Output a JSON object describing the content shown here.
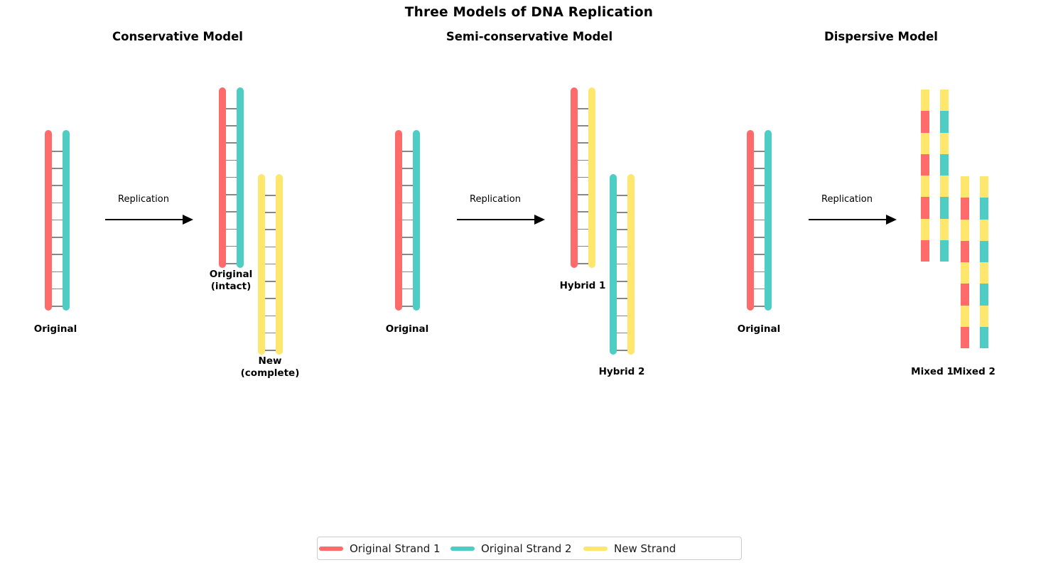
{
  "title": "Three Models of DNA Replication",
  "colors": {
    "original_strand_1": "#FF6B6B",
    "original_strand_2": "#4ECDC4",
    "new_strand": "#FFE66D",
    "rung": "#888888",
    "arrow": "#000000",
    "text": "#000000",
    "legend_border": "#cccccc"
  },
  "panels": [
    {
      "id": "conservative",
      "title": "Conservative Model",
      "arrow_label": "Replication",
      "molecules": [
        {
          "key": "original",
          "label_lines": [
            "Original"
          ],
          "kind": "helix",
          "strand_colors": [
            "original_strand_1",
            "original_strand_2"
          ]
        },
        {
          "key": "original_intact",
          "label_lines": [
            "Original",
            "(intact)"
          ],
          "kind": "helix",
          "strand_colors": [
            "original_strand_1",
            "original_strand_2"
          ]
        },
        {
          "key": "new_complete",
          "label_lines": [
            "New",
            "(complete)"
          ],
          "kind": "helix",
          "strand_colors": [
            "new_strand",
            "new_strand"
          ]
        }
      ]
    },
    {
      "id": "semi_conservative",
      "title": "Semi-conservative Model",
      "arrow_label": "Replication",
      "molecules": [
        {
          "key": "original",
          "label_lines": [
            "Original"
          ],
          "kind": "helix",
          "strand_colors": [
            "original_strand_1",
            "original_strand_2"
          ]
        },
        {
          "key": "hybrid_1",
          "label_lines": [
            "Hybrid 1"
          ],
          "kind": "helix",
          "strand_colors": [
            "original_strand_1",
            "new_strand"
          ]
        },
        {
          "key": "hybrid_2",
          "label_lines": [
            "Hybrid 2"
          ],
          "kind": "helix",
          "strand_colors": [
            "original_strand_2",
            "new_strand"
          ]
        }
      ]
    },
    {
      "id": "dispersive",
      "title": "Dispersive Model",
      "arrow_label": "Replication",
      "molecules": [
        {
          "key": "original",
          "label_lines": [
            "Original"
          ],
          "kind": "helix",
          "strand_colors": [
            "original_strand_1",
            "original_strand_2"
          ]
        },
        {
          "key": "mixed_1",
          "label_lines": [
            "Mixed 1"
          ],
          "kind": "segmented",
          "strand_segments": [
            [
              "new_strand",
              "original_strand_1",
              "new_strand",
              "original_strand_1",
              "new_strand",
              "original_strand_1",
              "new_strand",
              "original_strand_1"
            ],
            [
              "new_strand",
              "original_strand_2",
              "new_strand",
              "original_strand_2",
              "new_strand",
              "original_strand_2",
              "new_strand",
              "original_strand_2"
            ]
          ]
        },
        {
          "key": "mixed_2",
          "label_lines": [
            "Mixed 2"
          ],
          "kind": "segmented",
          "strand_segments": [
            [
              "new_strand",
              "original_strand_1",
              "new_strand",
              "original_strand_1",
              "new_strand",
              "original_strand_1",
              "new_strand",
              "original_strand_1"
            ],
            [
              "new_strand",
              "original_strand_2",
              "new_strand",
              "original_strand_2",
              "new_strand",
              "original_strand_2",
              "new_strand",
              "original_strand_2"
            ]
          ]
        }
      ]
    }
  ],
  "legend": {
    "entries": [
      {
        "label": "Original Strand 1",
        "color_key": "original_strand_1"
      },
      {
        "label": "Original Strand 2",
        "color_key": "original_strand_2"
      },
      {
        "label": "New Strand",
        "color_key": "new_strand"
      }
    ]
  }
}
